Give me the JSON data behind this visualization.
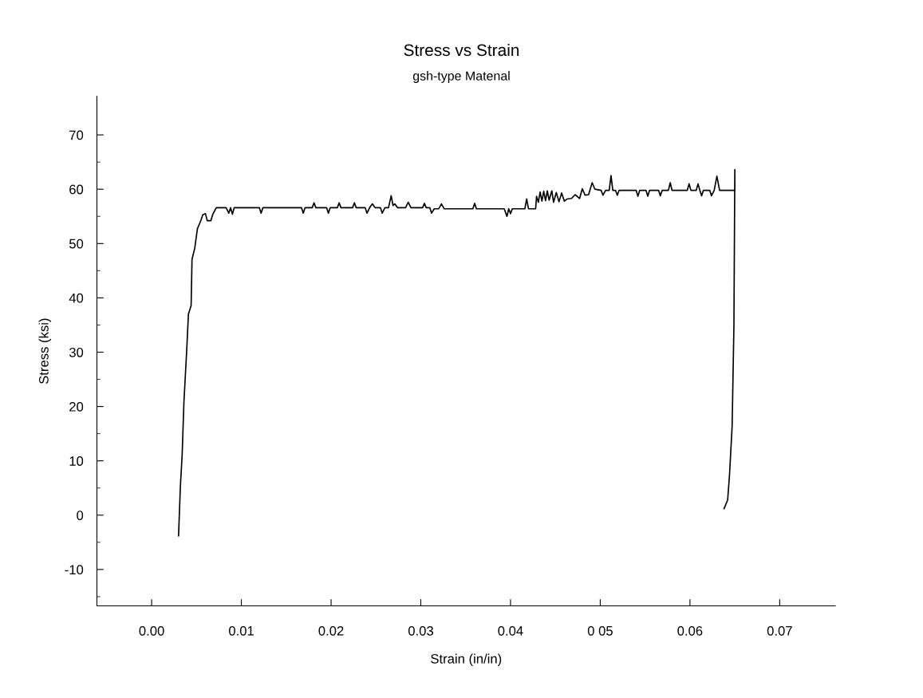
{
  "chart_data": {
    "type": "line",
    "title": "Stress vs Strain",
    "subtitle": "gsh-type Matenal",
    "xlabel": "Strain (in/in)",
    "ylabel": "Stress (ksi)",
    "x": [
      0.003,
      0.0032,
      0.0034,
      0.0036,
      0.0039,
      0.0041,
      0.0044,
      0.0045,
      0.0048,
      0.0051,
      0.0055,
      0.0057,
      0.006,
      0.0062,
      0.0066,
      0.0068,
      0.0072,
      0.0083,
      0.0086,
      0.0088,
      0.009,
      0.0092,
      0.0094,
      0.012,
      0.0122,
      0.0124,
      0.0167,
      0.0169,
      0.0171,
      0.0179,
      0.0181,
      0.0183,
      0.0195,
      0.0197,
      0.0199,
      0.0207,
      0.0209,
      0.0211,
      0.0224,
      0.0226,
      0.0228,
      0.0238,
      0.024,
      0.0243,
      0.0246,
      0.0249,
      0.0255,
      0.0257,
      0.026,
      0.0264,
      0.0267,
      0.0269,
      0.0271,
      0.0274,
      0.0283,
      0.0286,
      0.0289,
      0.0302,
      0.0304,
      0.0306,
      0.031,
      0.0312,
      0.0315,
      0.032,
      0.0323,
      0.0326,
      0.033,
      0.0358,
      0.036,
      0.0362,
      0.0393,
      0.0396,
      0.0398,
      0.04,
      0.0402,
      0.0416,
      0.0418,
      0.042,
      0.0428,
      0.0429,
      0.0431,
      0.0433,
      0.0435,
      0.0437,
      0.0439,
      0.0441,
      0.0443,
      0.0446,
      0.0448,
      0.0451,
      0.0454,
      0.0457,
      0.046,
      0.0463,
      0.0468,
      0.0472,
      0.0477,
      0.048,
      0.0483,
      0.0487,
      0.0491,
      0.0494,
      0.0501,
      0.0503,
      0.0506,
      0.051,
      0.0512,
      0.0514,
      0.0517,
      0.0519,
      0.0521,
      0.054,
      0.0542,
      0.0544,
      0.0551,
      0.0553,
      0.0555,
      0.0565,
      0.0567,
      0.0569,
      0.0576,
      0.0578,
      0.058,
      0.0597,
      0.0599,
      0.0601,
      0.0607,
      0.0609,
      0.0611,
      0.0613,
      0.0615,
      0.0622,
      0.0624,
      0.0627,
      0.063,
      0.0633,
      0.065,
      0.065,
      0.0649,
      0.0647,
      0.0644,
      0.0642,
      0.0638
    ],
    "values": [
      -3.8,
      5.2,
      11.1,
      20.9,
      30.1,
      37.0,
      38.6,
      47.1,
      49.1,
      52.7,
      54.3,
      55.3,
      55.5,
      54.2,
      54.2,
      55.3,
      56.6,
      56.6,
      55.6,
      56.6,
      55.4,
      56.6,
      56.6,
      56.6,
      55.6,
      56.6,
      56.6,
      55.6,
      56.6,
      56.6,
      57.5,
      56.6,
      56.6,
      55.6,
      56.6,
      56.6,
      57.5,
      56.6,
      56.6,
      57.5,
      56.6,
      56.6,
      55.6,
      56.6,
      57.3,
      56.6,
      56.6,
      55.6,
      56.6,
      56.6,
      58.8,
      57.0,
      57.3,
      56.6,
      56.6,
      57.6,
      56.6,
      56.6,
      57.4,
      56.6,
      56.6,
      55.6,
      56.4,
      56.4,
      57.3,
      56.4,
      56.4,
      56.4,
      57.4,
      56.4,
      56.4,
      55.0,
      56.4,
      55.5,
      56.4,
      56.4,
      58.2,
      56.4,
      56.4,
      58.7,
      57.6,
      59.5,
      57.8,
      59.6,
      57.9,
      59.7,
      58.0,
      59.7,
      57.6,
      59.4,
      57.7,
      59.3,
      57.8,
      58.2,
      58.3,
      59.0,
      58.3,
      60.1,
      58.9,
      59.0,
      61.2,
      60.0,
      59.8,
      58.9,
      59.8,
      59.8,
      62.5,
      59.8,
      59.8,
      58.9,
      59.8,
      59.8,
      58.7,
      59.8,
      59.8,
      58.7,
      59.8,
      59.8,
      58.8,
      59.8,
      59.8,
      61.2,
      59.8,
      59.8,
      61.0,
      59.8,
      59.8,
      61.0,
      59.8,
      58.8,
      59.8,
      59.8,
      58.8,
      59.8,
      62.4,
      59.8,
      59.8,
      63.6,
      35.0,
      16.4,
      7.2,
      2.8,
      1.2
    ],
    "color": "#000000",
    "xlim": [
      -0.0061,
      0.0762
    ],
    "ylim": [
      -16.7,
      77.1
    ],
    "xticks": [
      {
        "value": 0.0,
        "label": "0.00"
      },
      {
        "value": 0.01,
        "label": "0.01"
      },
      {
        "value": 0.02,
        "label": "0.02"
      },
      {
        "value": 0.03,
        "label": "0.03"
      },
      {
        "value": 0.04,
        "label": "0.04"
      },
      {
        "value": 0.05,
        "label": "0 05"
      },
      {
        "value": 0.06,
        "label": "0.06"
      },
      {
        "value": 0.07,
        "label": "0.07"
      }
    ],
    "yticks": [
      -10,
      0,
      10,
      20,
      30,
      40,
      50,
      60,
      70,
      {
        "value": -15,
        "label": null
      },
      {
        "value": -5,
        "label": null
      },
      {
        "value": 5,
        "label": null
      },
      {
        "value": 15,
        "label": null
      },
      {
        "value": 25,
        "label": null
      },
      {
        "value": 35,
        "label": null
      },
      {
        "value": 45,
        "label": null
      },
      {
        "value": 55,
        "label": null
      },
      {
        "value": 65,
        "label": null
      }
    ],
    "grid": false,
    "marker": "none",
    "line_style": "solid"
  }
}
